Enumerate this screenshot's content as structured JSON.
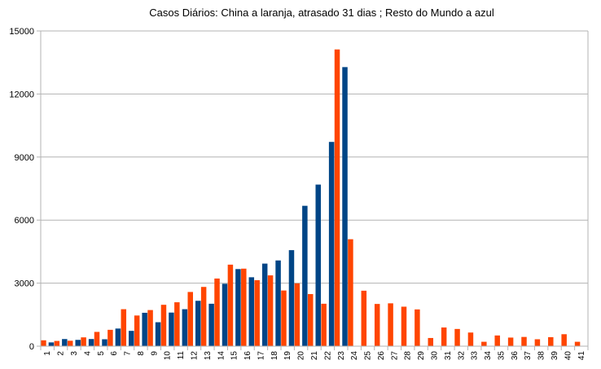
{
  "chart_data": {
    "type": "bar",
    "title": "Casos Diários: China a laranja, atrasado 31 dias ; Resto do Mundo a azul",
    "xlabel": "",
    "ylabel": "",
    "ylim": [
      0,
      15000
    ],
    "yticks": [
      0,
      3000,
      6000,
      9000,
      12000,
      15000
    ],
    "grid": true,
    "categories": [
      "1",
      "2",
      "3",
      "4",
      "5",
      "6",
      "7",
      "8",
      "9",
      "10",
      "11",
      "12",
      "13",
      "14",
      "15",
      "16",
      "17",
      "18",
      "19",
      "20",
      "21",
      "22",
      "23",
      "24",
      "25",
      "26",
      "27",
      "28",
      "29",
      "30",
      "31",
      "32",
      "33",
      "34",
      "35",
      "36",
      "37",
      "38",
      "39",
      "40",
      "41"
    ],
    "series": [
      {
        "color": "#ff4500",
        "values": [
          280,
          250,
          260,
          420,
          680,
          780,
          1760,
          1460,
          1720,
          1970,
          2090,
          2580,
          2820,
          3220,
          3880,
          3690,
          3140,
          3370,
          2650,
          2990,
          2480,
          2020,
          14120,
          5090,
          2640,
          2010,
          2040,
          1880,
          1750,
          390,
          890,
          820,
          650,
          210,
          510,
          410,
          440,
          330,
          430,
          570,
          210
        ]
      },
      {
        "color": "#004586",
        "values": [
          180,
          340,
          300,
          340,
          330,
          840,
          730,
          1590,
          1140,
          1600,
          1760,
          2160,
          2020,
          2970,
          3670,
          3280,
          3930,
          4080,
          4570,
          6680,
          7690,
          9720,
          13280,
          0,
          0,
          0,
          0,
          0,
          0,
          0,
          0,
          0,
          0,
          0,
          0,
          0,
          0,
          0,
          0,
          0,
          0
        ]
      }
    ]
  }
}
